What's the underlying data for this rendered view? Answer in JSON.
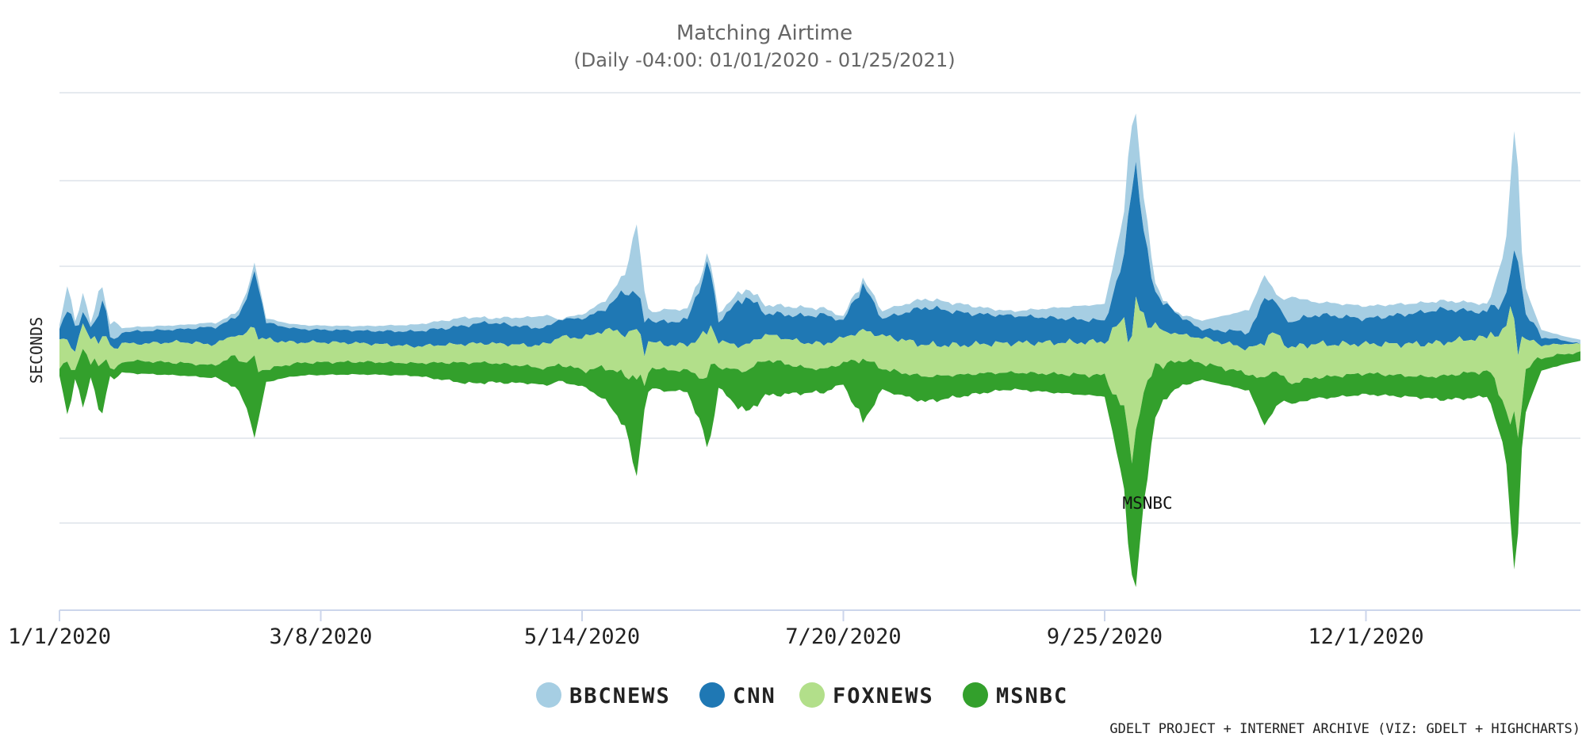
{
  "chart_data": {
    "type": "streamgraph",
    "title": "Matching Airtime",
    "subtitle": "(Daily -04:00: 01/01/2020 - 01/25/2021)",
    "ylabel": "SECONDS",
    "xlabel": "",
    "x_range": [
      "2020-01-01",
      "2021-01-25"
    ],
    "x_ticks": [
      "1/1/2020",
      "3/8/2020",
      "5/14/2020",
      "7/20/2020",
      "9/25/2020",
      "12/1/2020"
    ],
    "grid": true,
    "legend_position": "bottom-center",
    "annotation": {
      "text": "MSNBC",
      "date": "2020-10-06"
    },
    "credit": "GDELT PROJECT + INTERNET ARCHIVE (VIZ: GDELT + HIGHCHARTS)",
    "series": [
      {
        "name": "BBCNEWS",
        "color": "#a6cee3",
        "points": [
          [
            "2020-01-01",
            1
          ],
          [
            "2020-01-03",
            6
          ],
          [
            "2020-01-05",
            1
          ],
          [
            "2020-01-07",
            5
          ],
          [
            "2020-01-09",
            1
          ],
          [
            "2020-01-11",
            5
          ],
          [
            "2020-01-13",
            1
          ],
          [
            "2020-01-15",
            5
          ],
          [
            "2020-01-17",
            1
          ],
          [
            "2020-01-19",
            1
          ],
          [
            "2020-02-15",
            1
          ],
          [
            "2020-02-20",
            2
          ],
          [
            "2020-02-22",
            1
          ],
          [
            "2020-03-15",
            1
          ],
          [
            "2020-04-14",
            2
          ],
          [
            "2020-04-20",
            1
          ],
          [
            "2020-05-05",
            3
          ],
          [
            "2020-05-08",
            0
          ],
          [
            "2020-05-20",
            2
          ],
          [
            "2020-05-25",
            4
          ],
          [
            "2020-05-28",
            17
          ],
          [
            "2020-05-31",
            2
          ],
          [
            "2020-06-05",
            3
          ],
          [
            "2020-06-15",
            2
          ],
          [
            "2020-07-10",
            2
          ],
          [
            "2020-07-20",
            1
          ],
          [
            "2020-08-01",
            2
          ],
          [
            "2020-08-20",
            2
          ],
          [
            "2020-09-01",
            1
          ],
          [
            "2020-09-25",
            4
          ],
          [
            "2020-10-02",
            14
          ],
          [
            "2020-10-05",
            9
          ],
          [
            "2020-10-08",
            2
          ],
          [
            "2020-10-12",
            0
          ],
          [
            "2020-11-04",
            6
          ],
          [
            "2020-11-08",
            2
          ],
          [
            "2020-11-12",
            6
          ],
          [
            "2020-11-18",
            3
          ],
          [
            "2020-12-01",
            3
          ],
          [
            "2020-12-20",
            2
          ],
          [
            "2021-01-02",
            2
          ],
          [
            "2021-01-06",
            14
          ],
          [
            "2021-01-08",
            31
          ],
          [
            "2021-01-10",
            8
          ],
          [
            "2021-01-14",
            2
          ],
          [
            "2021-01-20",
            1
          ],
          [
            "2021-01-25",
            1
          ]
        ]
      },
      {
        "name": "CNN",
        "color": "#1f78b4",
        "points": [
          [
            "2020-01-01",
            3
          ],
          [
            "2020-01-04",
            8
          ],
          [
            "2020-01-06",
            3
          ],
          [
            "2020-01-10",
            3
          ],
          [
            "2020-01-12",
            10
          ],
          [
            "2020-01-14",
            2
          ],
          [
            "2020-01-20",
            3
          ],
          [
            "2020-02-01",
            3
          ],
          [
            "2020-02-08",
            4
          ],
          [
            "2020-02-15",
            4
          ],
          [
            "2020-02-19",
            10
          ],
          [
            "2020-02-21",
            13
          ],
          [
            "2020-02-23",
            4
          ],
          [
            "2020-03-05",
            3
          ],
          [
            "2020-03-20",
            3
          ],
          [
            "2020-04-10",
            4
          ],
          [
            "2020-04-20",
            5
          ],
          [
            "2020-05-05",
            4
          ],
          [
            "2020-05-20",
            5
          ],
          [
            "2020-05-25",
            10
          ],
          [
            "2020-05-28",
            9
          ],
          [
            "2020-06-01",
            5
          ],
          [
            "2020-06-10",
            6
          ],
          [
            "2020-06-15",
            16
          ],
          [
            "2020-06-18",
            5
          ],
          [
            "2020-06-25",
            12
          ],
          [
            "2020-06-30",
            5
          ],
          [
            "2020-07-15",
            7
          ],
          [
            "2020-07-20",
            4
          ],
          [
            "2020-07-25",
            11
          ],
          [
            "2020-07-30",
            4
          ],
          [
            "2020-08-10",
            9
          ],
          [
            "2020-08-25",
            7
          ],
          [
            "2020-09-10",
            6
          ],
          [
            "2020-09-25",
            5
          ],
          [
            "2020-09-30",
            14
          ],
          [
            "2020-10-02",
            40
          ],
          [
            "2020-10-05",
            20
          ],
          [
            "2020-10-08",
            8
          ],
          [
            "2020-10-15",
            4
          ],
          [
            "2020-10-20",
            2
          ],
          [
            "2020-11-01",
            4
          ],
          [
            "2020-11-05",
            10
          ],
          [
            "2020-11-10",
            6
          ],
          [
            "2020-11-20",
            7
          ],
          [
            "2020-12-01",
            6
          ],
          [
            "2020-12-10",
            7
          ],
          [
            "2020-12-20",
            8
          ],
          [
            "2021-01-01",
            6
          ],
          [
            "2021-01-07",
            8
          ],
          [
            "2021-01-09",
            21
          ],
          [
            "2021-01-11",
            6
          ],
          [
            "2021-01-15",
            2
          ],
          [
            "2021-01-20",
            1
          ],
          [
            "2021-01-25",
            0
          ]
        ]
      },
      {
        "name": "FOXNEWS",
        "color": "#b2df8a",
        "points": [
          [
            "2020-01-01",
            6
          ],
          [
            "2020-01-05",
            5
          ],
          [
            "2020-01-10",
            6
          ],
          [
            "2020-01-15",
            5
          ],
          [
            "2020-01-20",
            4
          ],
          [
            "2020-02-01",
            5
          ],
          [
            "2020-02-15",
            5
          ],
          [
            "2020-02-20",
            8
          ],
          [
            "2020-03-01",
            5
          ],
          [
            "2020-04-01",
            4
          ],
          [
            "2020-05-01",
            5
          ],
          [
            "2020-05-25",
            10
          ],
          [
            "2020-05-28",
            11
          ],
          [
            "2020-06-01",
            6
          ],
          [
            "2020-06-10",
            6
          ],
          [
            "2020-06-15",
            11
          ],
          [
            "2020-06-18",
            6
          ],
          [
            "2020-07-01",
            6
          ],
          [
            "2020-07-20",
            6
          ],
          [
            "2020-08-01",
            8
          ],
          [
            "2020-08-20",
            7
          ],
          [
            "2020-09-01",
            7
          ],
          [
            "2020-09-25",
            8
          ],
          [
            "2020-10-01",
            25
          ],
          [
            "2020-10-03",
            30
          ],
          [
            "2020-10-05",
            18
          ],
          [
            "2020-10-08",
            9
          ],
          [
            "2020-10-15",
            6
          ],
          [
            "2020-11-01",
            6
          ],
          [
            "2020-11-05",
            9
          ],
          [
            "2020-12-01",
            7
          ],
          [
            "2020-12-20",
            8
          ],
          [
            "2021-01-01",
            8
          ],
          [
            "2021-01-05",
            15
          ],
          [
            "2021-01-07",
            27
          ],
          [
            "2021-01-09",
            22
          ],
          [
            "2021-01-11",
            7
          ],
          [
            "2021-01-15",
            3
          ],
          [
            "2021-01-25",
            2
          ]
        ]
      },
      {
        "name": "MSNBC",
        "color": "#33a02c",
        "points": [
          [
            "2020-01-01",
            2
          ],
          [
            "2020-01-03",
            12
          ],
          [
            "2020-01-05",
            2
          ],
          [
            "2020-01-07",
            15
          ],
          [
            "2020-01-09",
            3
          ],
          [
            "2020-01-12",
            14
          ],
          [
            "2020-01-14",
            2
          ],
          [
            "2020-01-20",
            3
          ],
          [
            "2020-02-01",
            3
          ],
          [
            "2020-02-10",
            3
          ],
          [
            "2020-02-17",
            9
          ],
          [
            "2020-02-20",
            17
          ],
          [
            "2020-02-23",
            3
          ],
          [
            "2020-03-10",
            3
          ],
          [
            "2020-04-01",
            3
          ],
          [
            "2020-04-15",
            5
          ],
          [
            "2020-05-01",
            4
          ],
          [
            "2020-05-15",
            4
          ],
          [
            "2020-05-25",
            12
          ],
          [
            "2020-05-28",
            25
          ],
          [
            "2020-05-30",
            5
          ],
          [
            "2020-06-10",
            5
          ],
          [
            "2020-06-16",
            17
          ],
          [
            "2020-06-18",
            5
          ],
          [
            "2020-06-25",
            10
          ],
          [
            "2020-07-10",
            6
          ],
          [
            "2020-07-20",
            5
          ],
          [
            "2020-07-25",
            15
          ],
          [
            "2020-07-30",
            5
          ],
          [
            "2020-08-10",
            6
          ],
          [
            "2020-09-01",
            4
          ],
          [
            "2020-09-25",
            5
          ],
          [
            "2020-09-30",
            18
          ],
          [
            "2020-10-03",
            38
          ],
          [
            "2020-10-06",
            20
          ],
          [
            "2020-10-10",
            8
          ],
          [
            "2020-10-20",
            4
          ],
          [
            "2020-11-01",
            4
          ],
          [
            "2020-11-06",
            12
          ],
          [
            "2020-11-10",
            5
          ],
          [
            "2020-12-01",
            5
          ],
          [
            "2020-12-15",
            5
          ],
          [
            "2020-12-25",
            6
          ],
          [
            "2021-01-01",
            6
          ],
          [
            "2021-01-06",
            12
          ],
          [
            "2021-01-08",
            33
          ],
          [
            "2021-01-10",
            12
          ],
          [
            "2021-01-15",
            3
          ],
          [
            "2021-01-25",
            2
          ]
        ]
      }
    ]
  }
}
